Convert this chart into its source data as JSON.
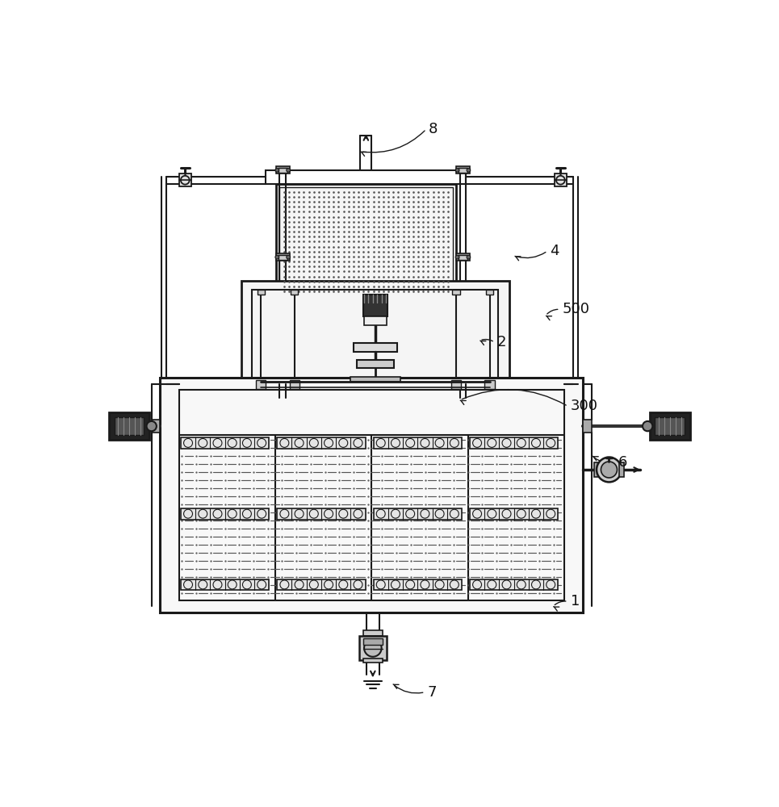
{
  "bg_color": "#ffffff",
  "lc": "#1a1a1a",
  "labels": {
    "8": [
      530,
      52,
      420,
      88
    ],
    "4": [
      725,
      248,
      668,
      256
    ],
    "500": [
      745,
      342,
      718,
      352
    ],
    "2": [
      640,
      395,
      612,
      392
    ],
    "300": [
      758,
      498,
      580,
      488
    ],
    "6": [
      835,
      588,
      793,
      578
    ],
    "1": [
      758,
      812,
      730,
      820
    ],
    "7": [
      528,
      958,
      472,
      945
    ]
  }
}
